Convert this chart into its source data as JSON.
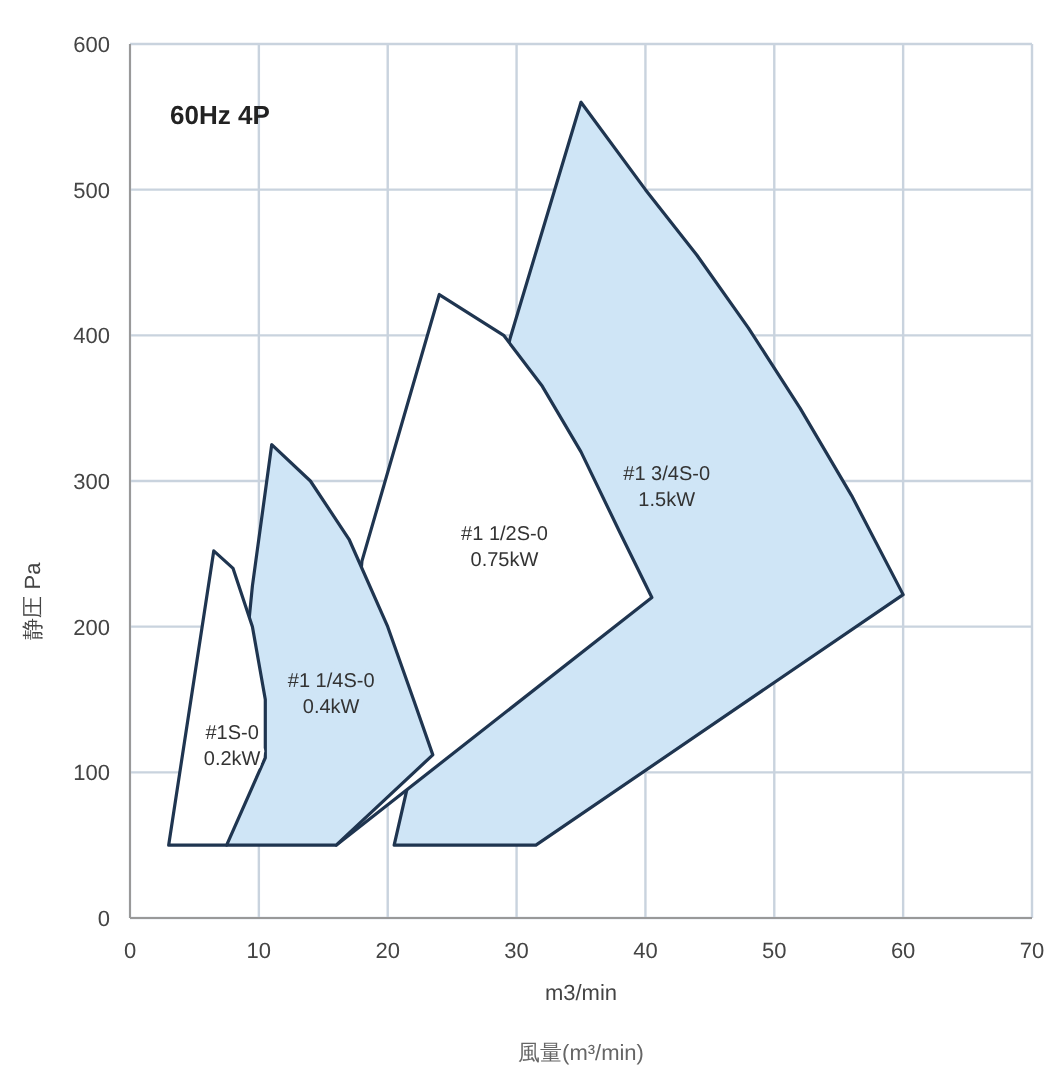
{
  "chart_data": {
    "type": "area",
    "xlabel": "m3/min",
    "ylabel": "静圧 Pa",
    "xlim": [
      0,
      70
    ],
    "ylim": [
      0,
      600
    ],
    "xticks": [
      0,
      10,
      20,
      30,
      40,
      50,
      60,
      70
    ],
    "yticks": [
      0,
      100,
      200,
      300,
      400,
      500,
      600
    ],
    "grid": true,
    "series": [
      {
        "name": "#1 3/4S-0 1.5kW",
        "color": "#cfe5f6",
        "x": [
          20.5,
          31.5,
          60,
          56,
          52,
          48,
          44,
          40,
          35,
          29.5
        ],
        "values": [
          50,
          50,
          222,
          290,
          350,
          405,
          455,
          500,
          560,
          398
        ]
      },
      {
        "name": "#1 1/2S-0 0.75kW",
        "color": "#ffffff",
        "x": [
          16,
          40.5,
          38,
          35,
          32,
          29,
          24,
          18
        ],
        "values": [
          50,
          220,
          265,
          320,
          365,
          400,
          428,
          245
        ]
      },
      {
        "name": "#1 1/4S-0 0.4kW",
        "color": "#cfe5f6",
        "x": [
          7.5,
          16,
          23.5,
          22,
          20,
          17,
          14,
          11,
          9.5
        ],
        "values": [
          50,
          50,
          112,
          150,
          200,
          260,
          300,
          325,
          228
        ]
      },
      {
        "name": "#1S-0 0.2kW",
        "color": "#ffffff",
        "x": [
          3,
          6.5,
          8,
          9.5,
          10.5,
          10.5,
          7.5
        ],
        "values": [
          50,
          252,
          240,
          200,
          150,
          110,
          50
        ]
      }
    ],
    "annotations": [
      "60Hz 4P",
      "風量(m³/min)"
    ]
  }
}
